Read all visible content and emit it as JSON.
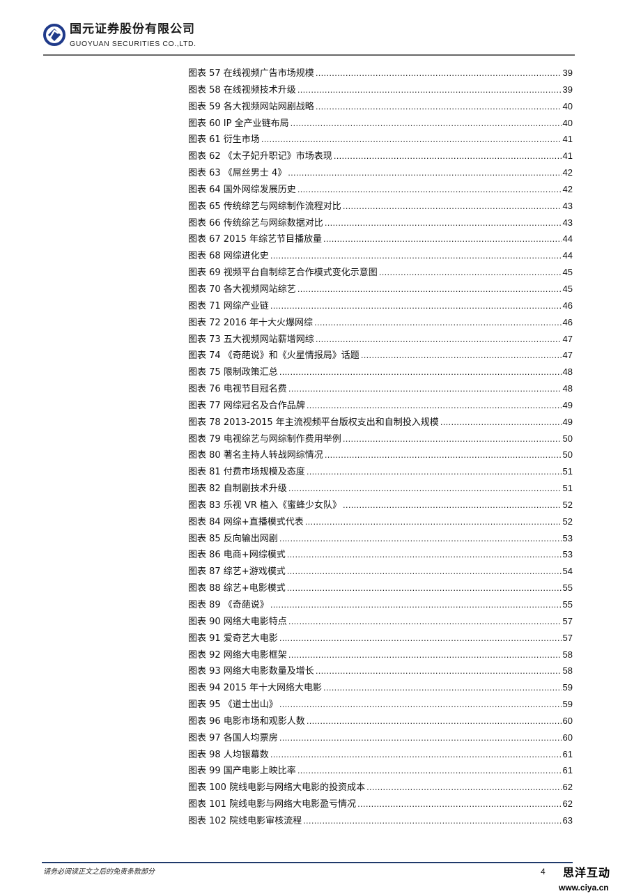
{
  "header": {
    "company_cn": "国元证券股份有限公司",
    "company_en": "GUOYUAN SECURITIES CO.,LTD.",
    "brand_color": "#1f3a8a"
  },
  "toc": [
    {
      "label": "图表 57 在线视频广告市场规模",
      "page": "39"
    },
    {
      "label": "图表 58 在线视频技术升级",
      "page": "39"
    },
    {
      "label": "图表 59 各大视频网站网剧战略",
      "page": "40"
    },
    {
      "label": "图表 60 IP 全产业链布局",
      "page": "40"
    },
    {
      "label": "图表 61 衍生市场 ",
      "page": "41"
    },
    {
      "label": "图表 62 《太子妃升职记》市场表现 ",
      "page": "41"
    },
    {
      "label": "图表 63 《屌丝男士 4》 ",
      "page": "42"
    },
    {
      "label": "图表 64 国外网综发展历史",
      "page": "42"
    },
    {
      "label": "图表 65 传统综艺与网综制作流程对比",
      "page": "43"
    },
    {
      "label": "图表 66 传统综艺与网综数据对比 ",
      "page": "43"
    },
    {
      "label": "图表 67 2015 年综艺节目播放量",
      "page": "44"
    },
    {
      "label": "图表 68 网综进化史",
      "page": "44"
    },
    {
      "label": "图表 69 视频平台自制综艺合作模式变化示意图 ",
      "page": "45"
    },
    {
      "label": "图表 70 各大视频网站综艺",
      "page": "45"
    },
    {
      "label": "图表 71 网综产业链",
      "page": "46"
    },
    {
      "label": "图表 72 2016 年十大火爆网综 ",
      "page": "46"
    },
    {
      "label": "图表 73 五大视频网站薪增网综",
      "page": "47"
    },
    {
      "label": "图表 74 《奇葩说》和《火星情报局》话题",
      "page": "47"
    },
    {
      "label": "图表 75 限制政策汇总 ",
      "page": "48"
    },
    {
      "label": "图表 76 电视节目冠名费 ",
      "page": "48"
    },
    {
      "label": "图表 77 网综冠名及合作品牌 ",
      "page": "49"
    },
    {
      "label": "图表 78 2013-2015 年主流视频平台版权支出和自制投入规模 ",
      "page": "49"
    },
    {
      "label": "图表 79 电视综艺与网综制作费用举例",
      "page": "50"
    },
    {
      "label": "图表 80 著名主持人转战网综情况",
      "page": "50"
    },
    {
      "label": "图表 81 付费市场规模及态度 ",
      "page": "51"
    },
    {
      "label": "图表 82 自制剧技术升级 ",
      "page": "51"
    },
    {
      "label": "图表 83 乐视 VR 植入《蜜蜂少女队》 ",
      "page": "52"
    },
    {
      "label": "图表 84 网综+直播模式代表",
      "page": "52"
    },
    {
      "label": "图表 85 反向输出网剧",
      "page": "53"
    },
    {
      "label": "图表 86 电商+网综模式",
      "page": "53"
    },
    {
      "label": "图表 87 综艺+游戏模式",
      "page": "54"
    },
    {
      "label": "图表 88 综艺+电影模式",
      "page": "55"
    },
    {
      "label": "图表 89 《奇葩说》 ",
      "page": "55"
    },
    {
      "label": "图表 90 网络大电影特点 ",
      "page": "57"
    },
    {
      "label": "图表 91 爱奇艺大电影",
      "page": "57"
    },
    {
      "label": "图表 92 网络大电影框架 ",
      "page": "58"
    },
    {
      "label": "图表 93 网络大电影数量及增长",
      "page": "58"
    },
    {
      "label": "图表 94 2015 年十大网络大电影",
      "page": "59"
    },
    {
      "label": "图表 95 《道士出山》 ",
      "page": "59"
    },
    {
      "label": "图表 96 电影市场和观影人数 ",
      "page": "60"
    },
    {
      "label": "图表 97 各国人均票房",
      "page": "60"
    },
    {
      "label": "图表 98 人均银幕数",
      "page": "61"
    },
    {
      "label": "图表 99 国产电影上映比率",
      "page": "61"
    },
    {
      "label": "图表 100 院线电影与网络大电影的投资成本 ",
      "page": "62"
    },
    {
      "label": "图表 101 院线电影与网络大电影盈亏情况 ",
      "page": "62"
    },
    {
      "label": "图表 102 院线电影审核流程",
      "page": "63"
    }
  ],
  "footer": {
    "disclaimer": "请务必阅读正文之后的免责条款部分",
    "page_number": "4",
    "watermark_cn": "思洋互动",
    "watermark_url": "www.ciya.cn"
  }
}
